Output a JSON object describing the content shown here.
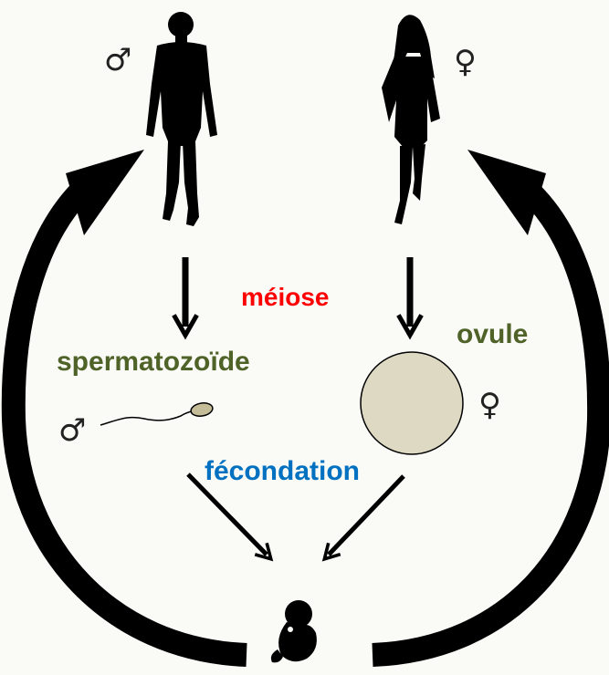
{
  "labels": {
    "meiose": "méiose",
    "spermatozoide": "spermatozoïde",
    "ovule": "ovule",
    "fecondation": "fécondation"
  },
  "symbols": {
    "male": "♂",
    "female": "♀"
  },
  "colors": {
    "background": "#fafaf7",
    "meiose": "#ff0000",
    "cell_labels": "#4f6228",
    "fecondation": "#0070c0",
    "arrows": "#000000",
    "ovule_fill": "#ddd9c3",
    "sperm_head_fill": "#c4bd97",
    "silhouettes": "#000000"
  },
  "icons": {
    "man": "man-silhouette-icon",
    "woman": "woman-silhouette-icon",
    "embryo": "embryo-icon",
    "sperm": "sperm-cell-icon",
    "ovule": "ovule-cell-icon"
  }
}
